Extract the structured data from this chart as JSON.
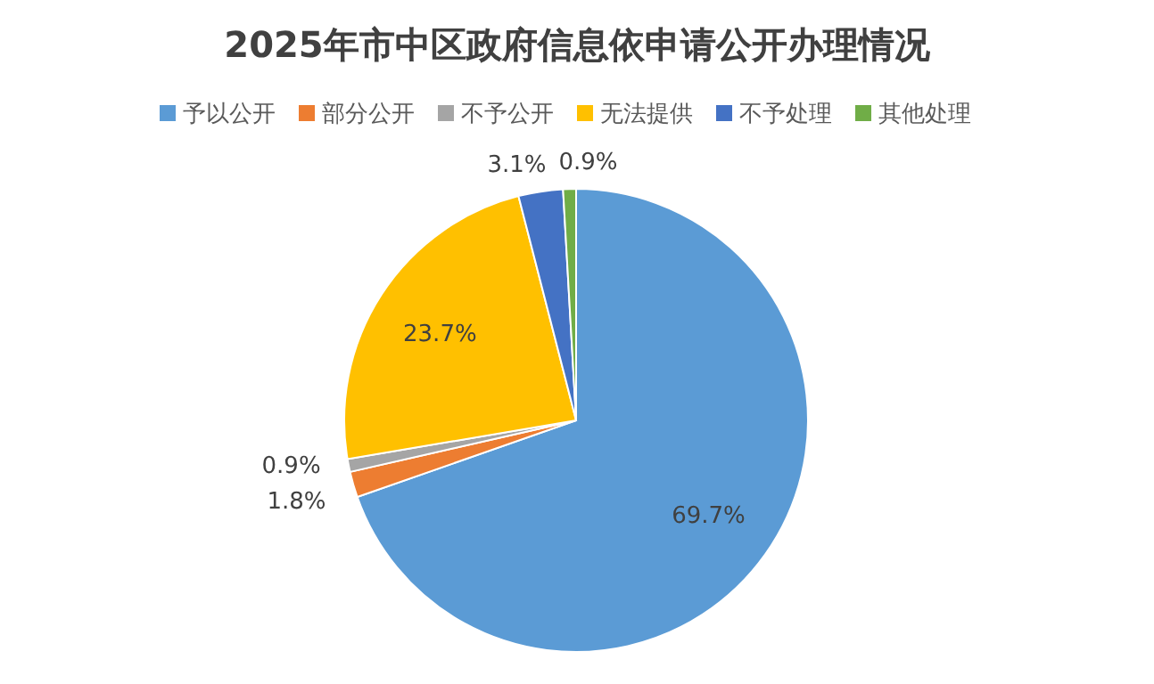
{
  "chart_data": {
    "type": "pie",
    "title": "2025年市中区政府信息依申请公开办理情况",
    "categories": [
      "予以公开",
      "部分公开",
      "不予公开",
      "无法提供",
      "不予处理",
      "其他处理"
    ],
    "values": [
      69.7,
      1.8,
      0.9,
      23.7,
      3.1,
      0.9
    ],
    "colors": [
      "#5b9bd5",
      "#ed7d31",
      "#a5a5a5",
      "#ffc000",
      "#4472c4",
      "#70ad47"
    ],
    "value_labels": [
      "69.7%",
      "1.8%",
      "0.9%",
      "23.7%",
      "3.1%",
      "0.9%"
    ],
    "legend": "top"
  }
}
